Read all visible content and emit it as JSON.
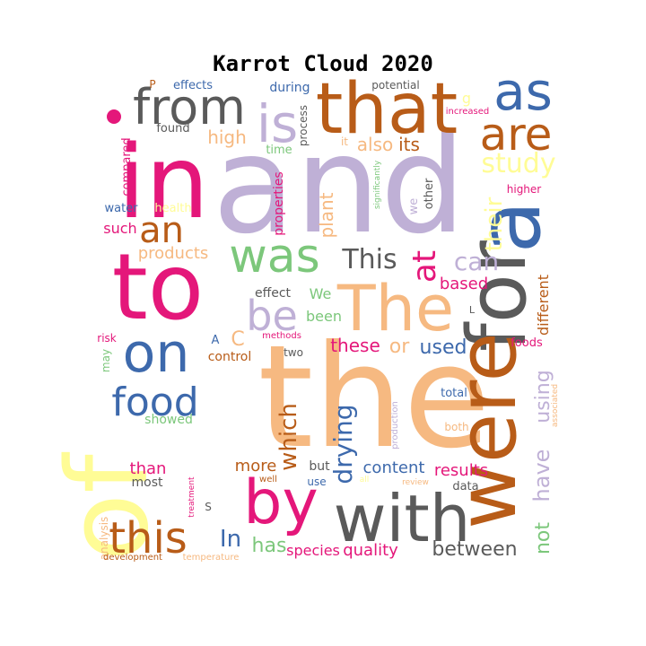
{
  "chart_data": {
    "type": "wordcloud",
    "title": "Karrot Cloud 2020",
    "palette": [
      "#bfb0d6",
      "#f6b981",
      "#5a5a5a",
      "#e4177a",
      "#3d69ac",
      "#b85c18",
      "#fffc96",
      "#7cc77b"
    ],
    "words": [
      {
        "text": "and",
        "color": "#bfb0d6"
      },
      {
        "text": "the",
        "color": "#f6b981"
      },
      {
        "text": "in",
        "color": "#e4177a"
      },
      {
        "text": "to",
        "color": "#e4177a"
      },
      {
        "text": "of",
        "color": "#fffc96"
      },
      {
        "text": "that",
        "color": "#b85c18"
      },
      {
        "text": "as",
        "color": "#3d69ac"
      },
      {
        "text": "from",
        "color": "#5a5a5a"
      },
      {
        "text": "is",
        "color": "#bfb0d6"
      },
      {
        "text": "are",
        "color": "#b85c18"
      },
      {
        "text": "a",
        "color": "#3d69ac"
      },
      {
        "text": "for",
        "color": "#5a5a5a"
      },
      {
        "text": "were",
        "color": "#b85c18"
      },
      {
        "text": "with",
        "color": "#5a5a5a"
      },
      {
        "text": "by",
        "color": "#e4177a"
      },
      {
        "text": "was",
        "color": "#7cc77b"
      },
      {
        "text": "The",
        "color": "#f6b981"
      },
      {
        "text": "on",
        "color": "#3d69ac"
      },
      {
        "text": "food",
        "color": "#3d69ac"
      },
      {
        "text": "this",
        "color": "#b85c18"
      },
      {
        "text": "an",
        "color": "#b85c18"
      },
      {
        "text": "be",
        "color": "#bfb0d6"
      },
      {
        "text": "at",
        "color": "#e4177a"
      },
      {
        "text": "This",
        "color": "#5a5a5a"
      },
      {
        "text": "can",
        "color": "#bfb0d6"
      },
      {
        "text": "study",
        "color": "#fffc96"
      },
      {
        "text": "their",
        "color": "#fffc96"
      },
      {
        "text": "which",
        "color": "#b85c18"
      },
      {
        "text": "drying",
        "color": "#3d69ac"
      },
      {
        "text": "have",
        "color": "#bfb0d6"
      },
      {
        "text": "using",
        "color": "#bfb0d6"
      },
      {
        "text": "not",
        "color": "#7cc77b"
      },
      {
        "text": "In",
        "color": "#3d69ac"
      },
      {
        "text": "has",
        "color": "#7cc77b"
      },
      {
        "text": "high",
        "color": "#f6b981"
      },
      {
        "text": "also",
        "color": "#f6b981"
      },
      {
        "text": "its",
        "color": "#b85c18"
      },
      {
        "text": "or",
        "color": "#f6b981"
      },
      {
        "text": "used",
        "color": "#3d69ac"
      },
      {
        "text": "these",
        "color": "#e4177a"
      },
      {
        "text": "based",
        "color": "#e4177a"
      },
      {
        "text": "plant",
        "color": "#f6b981"
      },
      {
        "text": "products",
        "color": "#f6b981"
      },
      {
        "text": "properties",
        "color": "#e4177a"
      },
      {
        "text": "between",
        "color": "#5a5a5a"
      },
      {
        "text": "quality",
        "color": "#e4177a"
      },
      {
        "text": "species",
        "color": "#e4177a"
      },
      {
        "text": "results",
        "color": "#e4177a"
      },
      {
        "text": "content",
        "color": "#3d69ac"
      },
      {
        "text": "more",
        "color": "#b85c18"
      },
      {
        "text": "than",
        "color": "#e4177a"
      },
      {
        "text": "different",
        "color": "#b85c18"
      },
      {
        "text": "such",
        "color": "#e4177a"
      },
      {
        "text": "We",
        "color": "#7cc77b"
      },
      {
        "text": "been",
        "color": "#7cc77b"
      },
      {
        "text": "control",
        "color": "#b85c18"
      },
      {
        "text": "effect",
        "color": "#5a5a5a"
      },
      {
        "text": "showed",
        "color": "#7cc77b"
      },
      {
        "text": "most",
        "color": "#5a5a5a"
      },
      {
        "text": "but",
        "color": "#5a5a5a"
      },
      {
        "text": "water",
        "color": "#3d69ac"
      },
      {
        "text": "health",
        "color": "#fffc96"
      },
      {
        "text": "compared",
        "color": "#e4177a"
      },
      {
        "text": "found",
        "color": "#5a5a5a"
      },
      {
        "text": "effects",
        "color": "#3d69ac"
      },
      {
        "text": "during",
        "color": "#3d69ac"
      },
      {
        "text": "potential",
        "color": "#5a5a5a"
      },
      {
        "text": "process",
        "color": "#5a5a5a"
      },
      {
        "text": "time",
        "color": "#7cc77b"
      },
      {
        "text": "increased",
        "color": "#e4177a"
      },
      {
        "text": "higher",
        "color": "#e4177a"
      },
      {
        "text": "other",
        "color": "#5a5a5a"
      },
      {
        "text": "we",
        "color": "#bfb0d6"
      },
      {
        "text": "it",
        "color": "#f6b981"
      },
      {
        "text": "significantly",
        "color": "#7cc77b"
      },
      {
        "text": "foods",
        "color": "#e4177a"
      },
      {
        "text": "total",
        "color": "#3d69ac"
      },
      {
        "text": "associated",
        "color": "#f6b981"
      },
      {
        "text": "both",
        "color": "#f6b981"
      },
      {
        "text": "production",
        "color": "#bfb0d6"
      },
      {
        "text": "data",
        "color": "#5a5a5a"
      },
      {
        "text": "review",
        "color": "#f6b981"
      },
      {
        "text": "use",
        "color": "#3d69ac"
      },
      {
        "text": "well",
        "color": "#b85c18"
      },
      {
        "text": "all",
        "color": "#fffc96"
      },
      {
        "text": "two",
        "color": "#5a5a5a"
      },
      {
        "text": "methods",
        "color": "#e4177a"
      },
      {
        "text": "risk",
        "color": "#e4177a"
      },
      {
        "text": "may",
        "color": "#7cc77b"
      },
      {
        "text": "analysis",
        "color": "#f6b981"
      },
      {
        "text": "development",
        "color": "#b85c18"
      },
      {
        "text": "temperature",
        "color": "#f6b981"
      },
      {
        "text": "treatment",
        "color": "#e4177a"
      },
      {
        "text": "A",
        "color": "#3d69ac"
      },
      {
        "text": "C",
        "color": "#f6b981"
      },
      {
        "text": "S",
        "color": "#5a5a5a"
      },
      {
        "text": "P",
        "color": "#b85c18"
      },
      {
        "text": "L",
        "color": "#5a5a5a"
      },
      {
        "text": "g",
        "color": "#fffc96"
      }
    ]
  }
}
